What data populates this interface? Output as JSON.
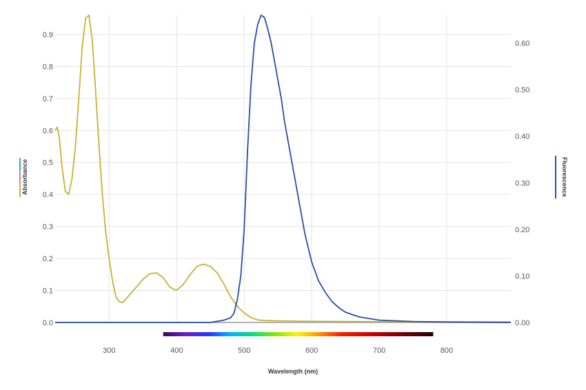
{
  "chart_data": {
    "type": "line",
    "xlabel": "Wavelength (nm)",
    "ylabel_left": "Absorbance",
    "ylabel_right": "Fluorescence",
    "xlim": [
      220,
      895
    ],
    "ylim_left": [
      0,
      0.96
    ],
    "ylim_right": [
      0,
      0.66
    ],
    "x_ticks": [
      300,
      400,
      500,
      600,
      700,
      800
    ],
    "y_ticks_left": [
      "0.0",
      "0.1",
      "0.2",
      "0.3",
      "0.4",
      "0.5",
      "0.6",
      "0.7",
      "0.8",
      "0.9"
    ],
    "y_ticks_right": [
      "0.00",
      "0.10",
      "0.20",
      "0.30",
      "0.40",
      "0.50",
      "0.60"
    ],
    "grid": true,
    "legend": "none",
    "visible_spectrum_bar": {
      "range_nm": [
        380,
        780
      ]
    },
    "left_axis_marker_colors": [
      "#35a6c8",
      "#e27fa6",
      "#c6b22f"
    ],
    "series": [
      {
        "axis": "left",
        "color": "#c6b22f",
        "x": [
          220,
          223,
          226,
          230,
          235,
          240,
          245,
          250,
          255,
          260,
          265,
          270,
          275,
          280,
          285,
          290,
          295,
          300,
          305,
          310,
          315,
          320,
          330,
          340,
          350,
          360,
          370,
          380,
          390,
          400,
          410,
          420,
          430,
          440,
          450,
          460,
          470,
          480,
          490,
          500,
          510,
          520,
          530,
          550,
          580,
          650,
          750,
          895
        ],
        "y": [
          0.6,
          0.61,
          0.58,
          0.49,
          0.41,
          0.4,
          0.45,
          0.55,
          0.7,
          0.86,
          0.95,
          0.96,
          0.88,
          0.72,
          0.55,
          0.4,
          0.28,
          0.2,
          0.13,
          0.08,
          0.065,
          0.062,
          0.085,
          0.11,
          0.135,
          0.152,
          0.155,
          0.14,
          0.11,
          0.1,
          0.12,
          0.15,
          0.175,
          0.182,
          0.175,
          0.155,
          0.12,
          0.08,
          0.05,
          0.03,
          0.015,
          0.008,
          0.006,
          0.005,
          0.004,
          0.003,
          0.002,
          0.002
        ]
      },
      {
        "axis": "right",
        "color": "#2a4aa8",
        "x": [
          220,
          450,
          470,
          480,
          485,
          490,
          495,
          500,
          505,
          510,
          515,
          520,
          525,
          530,
          535,
          540,
          545,
          550,
          555,
          560,
          570,
          580,
          590,
          600,
          610,
          620,
          630,
          640,
          650,
          670,
          700,
          750,
          800,
          895
        ],
        "y": [
          0.0,
          0.0,
          0.005,
          0.01,
          0.02,
          0.05,
          0.1,
          0.2,
          0.37,
          0.51,
          0.6,
          0.64,
          0.66,
          0.655,
          0.63,
          0.6,
          0.56,
          0.52,
          0.48,
          0.43,
          0.35,
          0.27,
          0.19,
          0.13,
          0.09,
          0.065,
          0.045,
          0.032,
          0.022,
          0.012,
          0.005,
          0.002,
          0.001,
          0.0
        ]
      }
    ]
  }
}
